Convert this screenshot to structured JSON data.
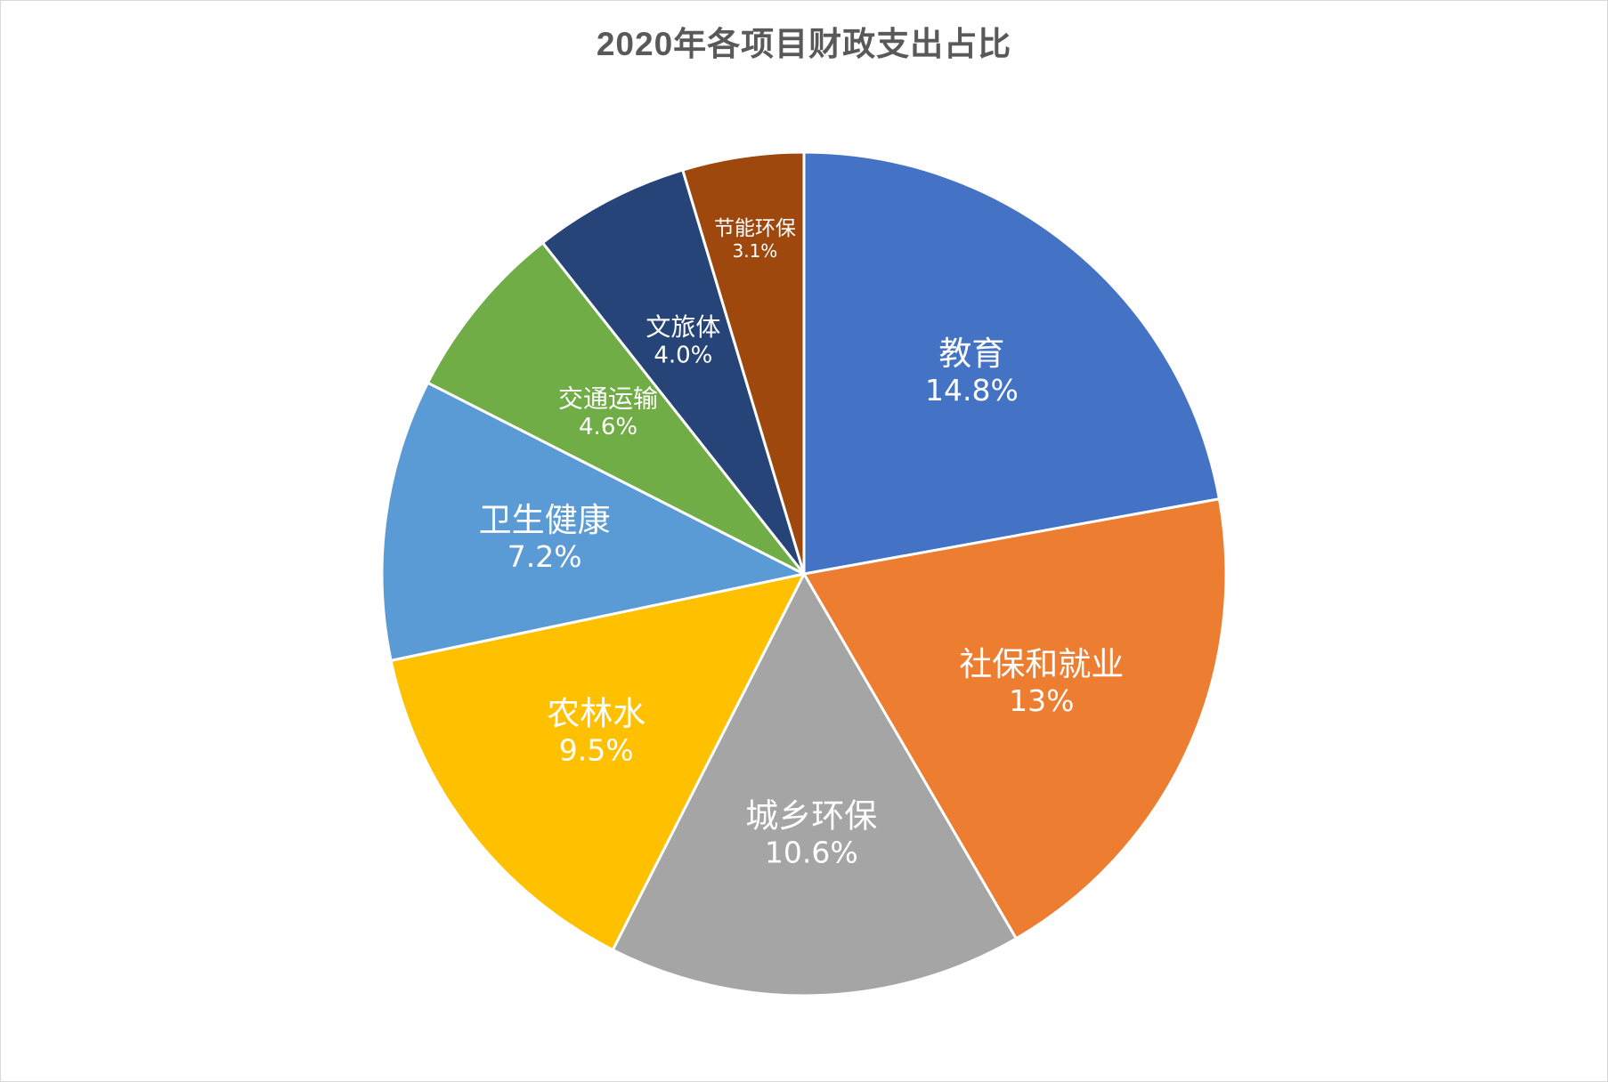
{
  "chart_data": {
    "type": "pie",
    "title": "2020年各项目财政支出占比",
    "start_angle_deg": 0,
    "direction": "clockwise",
    "slices": [
      {
        "label": "教育",
        "value": 14.8,
        "display": "14.8%",
        "color": "#4472C4"
      },
      {
        "label": "社保和就业",
        "value": 13,
        "display": "13%",
        "color": "#ED7D31"
      },
      {
        "label": "城乡环保",
        "value": 10.6,
        "display": "10.6%",
        "color": "#A5A5A5"
      },
      {
        "label": "农林水",
        "value": 9.5,
        "display": "9.5%",
        "color": "#FFC000"
      },
      {
        "label": "卫生健康",
        "value": 7.2,
        "display": "7.2%",
        "color": "#5B9BD5"
      },
      {
        "label": "交通运输",
        "value": 4.6,
        "display": "4.6%",
        "color": "#70AD47"
      },
      {
        "label": "文旅体",
        "value": 4.0,
        "display": "4.0%",
        "color": "#264478"
      },
      {
        "label": "节能环保",
        "value": 3.1,
        "display": "3.1%",
        "color": "#9E480E"
      }
    ]
  }
}
